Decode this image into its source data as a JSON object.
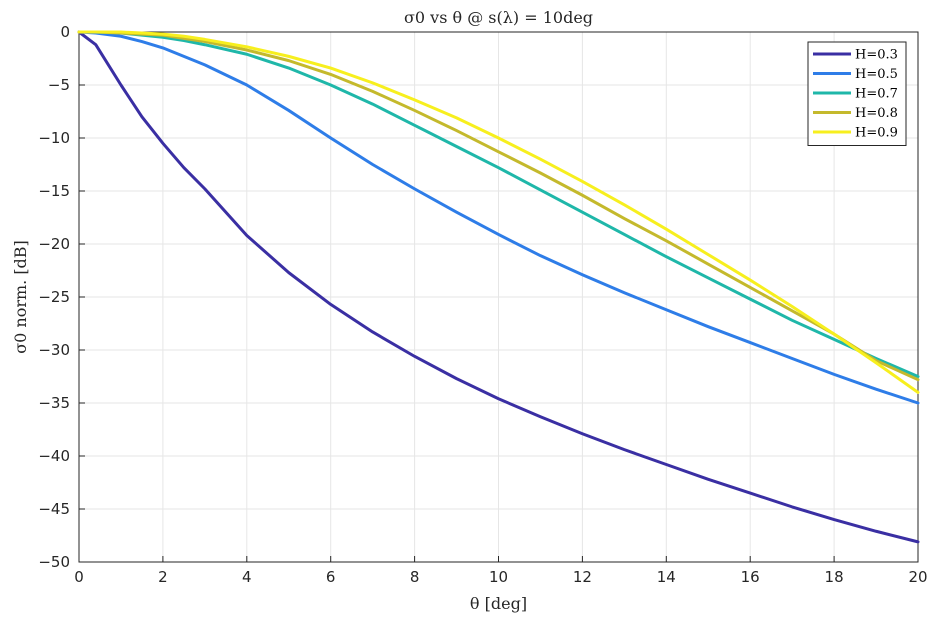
{
  "chart_data": {
    "type": "line",
    "title": "σ0 vs θ @ s(λ) = 10deg",
    "xlabel": "θ [deg]",
    "ylabel": "σ0 norm. [dB]",
    "xlim": [
      0,
      20
    ],
    "ylim": [
      -50,
      0
    ],
    "xticks": [
      0,
      2,
      4,
      6,
      8,
      10,
      12,
      14,
      16,
      18,
      20
    ],
    "yticks": [
      0,
      -5,
      -10,
      -15,
      -20,
      -25,
      -30,
      -35,
      -40,
      -45,
      -50
    ],
    "grid": true,
    "legend_position": "top-right",
    "x": [
      0,
      0.4,
      1,
      1.5,
      2,
      2.5,
      3,
      4,
      5,
      6,
      7,
      8,
      9,
      10,
      11,
      12,
      13,
      14,
      15,
      16,
      17,
      18,
      19,
      20
    ],
    "series": [
      {
        "name": "H=0.3",
        "color": "#3a2fa3",
        "values": [
          0,
          -1.2,
          -5.0,
          -8.0,
          -10.5,
          -12.8,
          -14.8,
          -19.2,
          -22.7,
          -25.7,
          -28.3,
          -30.6,
          -32.7,
          -34.6,
          -36.3,
          -37.9,
          -39.4,
          -40.8,
          -42.2,
          -43.5,
          -44.8,
          -46.0,
          -47.1,
          -48.1
        ]
      },
      {
        "name": "H=0.5",
        "color": "#2e7de8",
        "values": [
          0,
          -0.1,
          -0.4,
          -0.9,
          -1.5,
          -2.3,
          -3.1,
          -5.0,
          -7.4,
          -10.0,
          -12.5,
          -14.8,
          -17.0,
          -19.1,
          -21.1,
          -22.9,
          -24.6,
          -26.2,
          -27.8,
          -29.3,
          -30.8,
          -32.3,
          -33.7,
          -35.0
        ]
      },
      {
        "name": "H=0.7",
        "color": "#1fb7a9",
        "values": [
          0,
          0,
          -0.1,
          -0.3,
          -0.5,
          -0.8,
          -1.2,
          -2.1,
          -3.4,
          -5.0,
          -6.8,
          -8.8,
          -10.8,
          -12.8,
          -14.9,
          -17.0,
          -19.1,
          -21.2,
          -23.2,
          -25.2,
          -27.2,
          -29.0,
          -30.8,
          -32.5
        ]
      },
      {
        "name": "H=0.8",
        "color": "#c4b92c",
        "values": [
          0,
          0,
          -0.1,
          -0.2,
          -0.3,
          -0.6,
          -0.9,
          -1.7,
          -2.7,
          -4.0,
          -5.6,
          -7.4,
          -9.3,
          -11.3,
          -13.3,
          -15.4,
          -17.6,
          -19.7,
          -21.9,
          -24.1,
          -26.3,
          -28.5,
          -31.0,
          -32.8
        ]
      },
      {
        "name": "H=0.9",
        "color": "#f7ef1e",
        "values": [
          0,
          0,
          0,
          -0.1,
          -0.2,
          -0.4,
          -0.7,
          -1.4,
          -2.3,
          -3.4,
          -4.8,
          -6.4,
          -8.1,
          -10.0,
          -12.0,
          -14.1,
          -16.3,
          -18.6,
          -21.0,
          -23.4,
          -25.9,
          -28.5,
          -31.2,
          -34.0
        ]
      }
    ]
  }
}
